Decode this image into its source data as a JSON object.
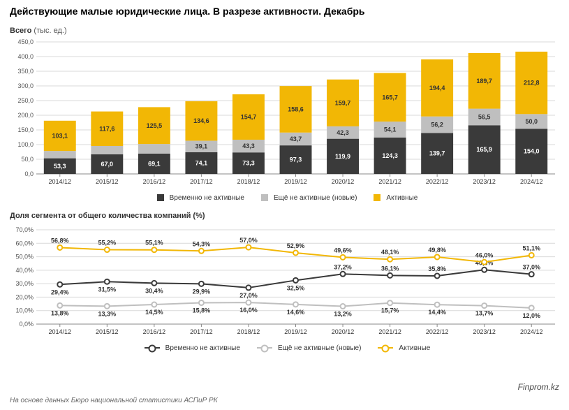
{
  "title": "Действующие малые юридические лица. В разрезе активности. Декабрь",
  "bar": {
    "subtitle_main": "Всего",
    "subtitle_units": "(тыс. ед.)",
    "categories": [
      "2014/12",
      "2015/12",
      "2016/12",
      "2017/12",
      "2018/12",
      "2019/12",
      "2020/12",
      "2021/12",
      "2022/12",
      "2023/12",
      "2024/12"
    ],
    "series": [
      {
        "name": "Временно не активные",
        "color": "#3a3a3a",
        "values": [
          53.3,
          67.0,
          69.1,
          74.1,
          73.3,
          97.3,
          119.9,
          124.3,
          139.7,
          165.9,
          154.0
        ],
        "labels": [
          "53,3",
          "67,0",
          "69,1",
          "74,1",
          "73,3",
          "97,3",
          "119,9",
          "124,3",
          "139,7",
          "165,9",
          "154,0"
        ]
      },
      {
        "name": "Ещё не активные (новые)",
        "color": "#bfbfbf",
        "values": [
          25.0,
          28.3,
          33.0,
          39.1,
          43.3,
          43.7,
          42.3,
          54.1,
          56.2,
          56.5,
          50.0
        ],
        "labels": [
          "25,0",
          "28,3",
          "33,0",
          "39,1",
          "43,3",
          "43,7",
          "42,3",
          "54,1",
          "56,2",
          "56,5",
          "50,0"
        ]
      },
      {
        "name": "Активные",
        "color": "#f2b705",
        "values": [
          103.1,
          117.6,
          125.5,
          134.6,
          154.7,
          158.6,
          159.7,
          165.7,
          194.4,
          189.7,
          212.8
        ],
        "labels": [
          "103,1",
          "117,6",
          "125,5",
          "134,6",
          "154,7",
          "158,6",
          "159,7",
          "165,7",
          "194,4",
          "189,7",
          "212,8"
        ]
      }
    ],
    "ymax": 450,
    "ytick_step": 50,
    "yticks": [
      "0,0",
      "50,0",
      "100,0",
      "150,0",
      "200,0",
      "250,0",
      "300,0",
      "350,0",
      "400,0",
      "450,0"
    ],
    "grid_color": "#d9d9d9",
    "axis_color": "#888888",
    "label_fontsize": 9,
    "tick_fontsize": 9,
    "bg": "#ffffff"
  },
  "line": {
    "subtitle": "Доля сегмента от общего количества компаний (%)",
    "categories": [
      "2014/12",
      "2015/12",
      "2016/12",
      "2017/12",
      "2018/12",
      "2019/12",
      "2020/12",
      "2021/12",
      "2022/12",
      "2023/12",
      "2024/12"
    ],
    "series": [
      {
        "name": "Временно не активные",
        "color": "#3a3a3a",
        "values": [
          29.4,
          31.5,
          30.4,
          29.9,
          27.0,
          32.5,
          37.2,
          36.1,
          35.8,
          40.3,
          37.0
        ],
        "labels": [
          "29,4%",
          "31,5%",
          "30,4%",
          "29,9%",
          "27,0%",
          "32,5%",
          "37,2%",
          "36,1%",
          "35,8%",
          "40,3%",
          "37,0%"
        ],
        "label_above": [
          false,
          false,
          false,
          false,
          false,
          false,
          true,
          true,
          true,
          true,
          true
        ]
      },
      {
        "name": "Ещё не активные (новые)",
        "color": "#bfbfbf",
        "values": [
          13.8,
          13.3,
          14.5,
          15.8,
          16.0,
          14.6,
          13.2,
          15.7,
          14.4,
          13.7,
          12.0
        ],
        "labels": [
          "13,8%",
          "13,3%",
          "14,5%",
          "15,8%",
          "16,0%",
          "14,6%",
          "13,2%",
          "15,7%",
          "14,4%",
          "13,7%",
          "12,0%"
        ],
        "label_above": [
          false,
          false,
          false,
          false,
          false,
          false,
          false,
          false,
          false,
          false,
          false
        ]
      },
      {
        "name": "Активные",
        "color": "#f2b705",
        "values": [
          56.8,
          55.2,
          55.1,
          54.3,
          57.0,
          52.9,
          49.6,
          48.1,
          49.8,
          46.0,
          51.1
        ],
        "labels": [
          "56,8%",
          "55,2%",
          "55,1%",
          "54,3%",
          "57,0%",
          "52,9%",
          "49,6%",
          "48,1%",
          "49,8%",
          "46,0%",
          "51,1%"
        ],
        "label_above": [
          true,
          true,
          true,
          true,
          true,
          true,
          true,
          true,
          true,
          true,
          true
        ]
      }
    ],
    "ymax": 70,
    "ytick_step": 10,
    "yticks": [
      "0,0%",
      "10,0%",
      "20,0%",
      "30,0%",
      "40,0%",
      "50,0%",
      "60,0%",
      "70,0%"
    ],
    "grid_color": "#d9d9d9",
    "axis_color": "#888888",
    "label_fontsize": 9,
    "tick_fontsize": 9,
    "line_width": 2,
    "marker_radius": 3.5,
    "bg": "#ffffff"
  },
  "footer_source": "На основе данных Бюро национальной статистики АСПиР РК",
  "footer_brand": "Finprom.kz"
}
